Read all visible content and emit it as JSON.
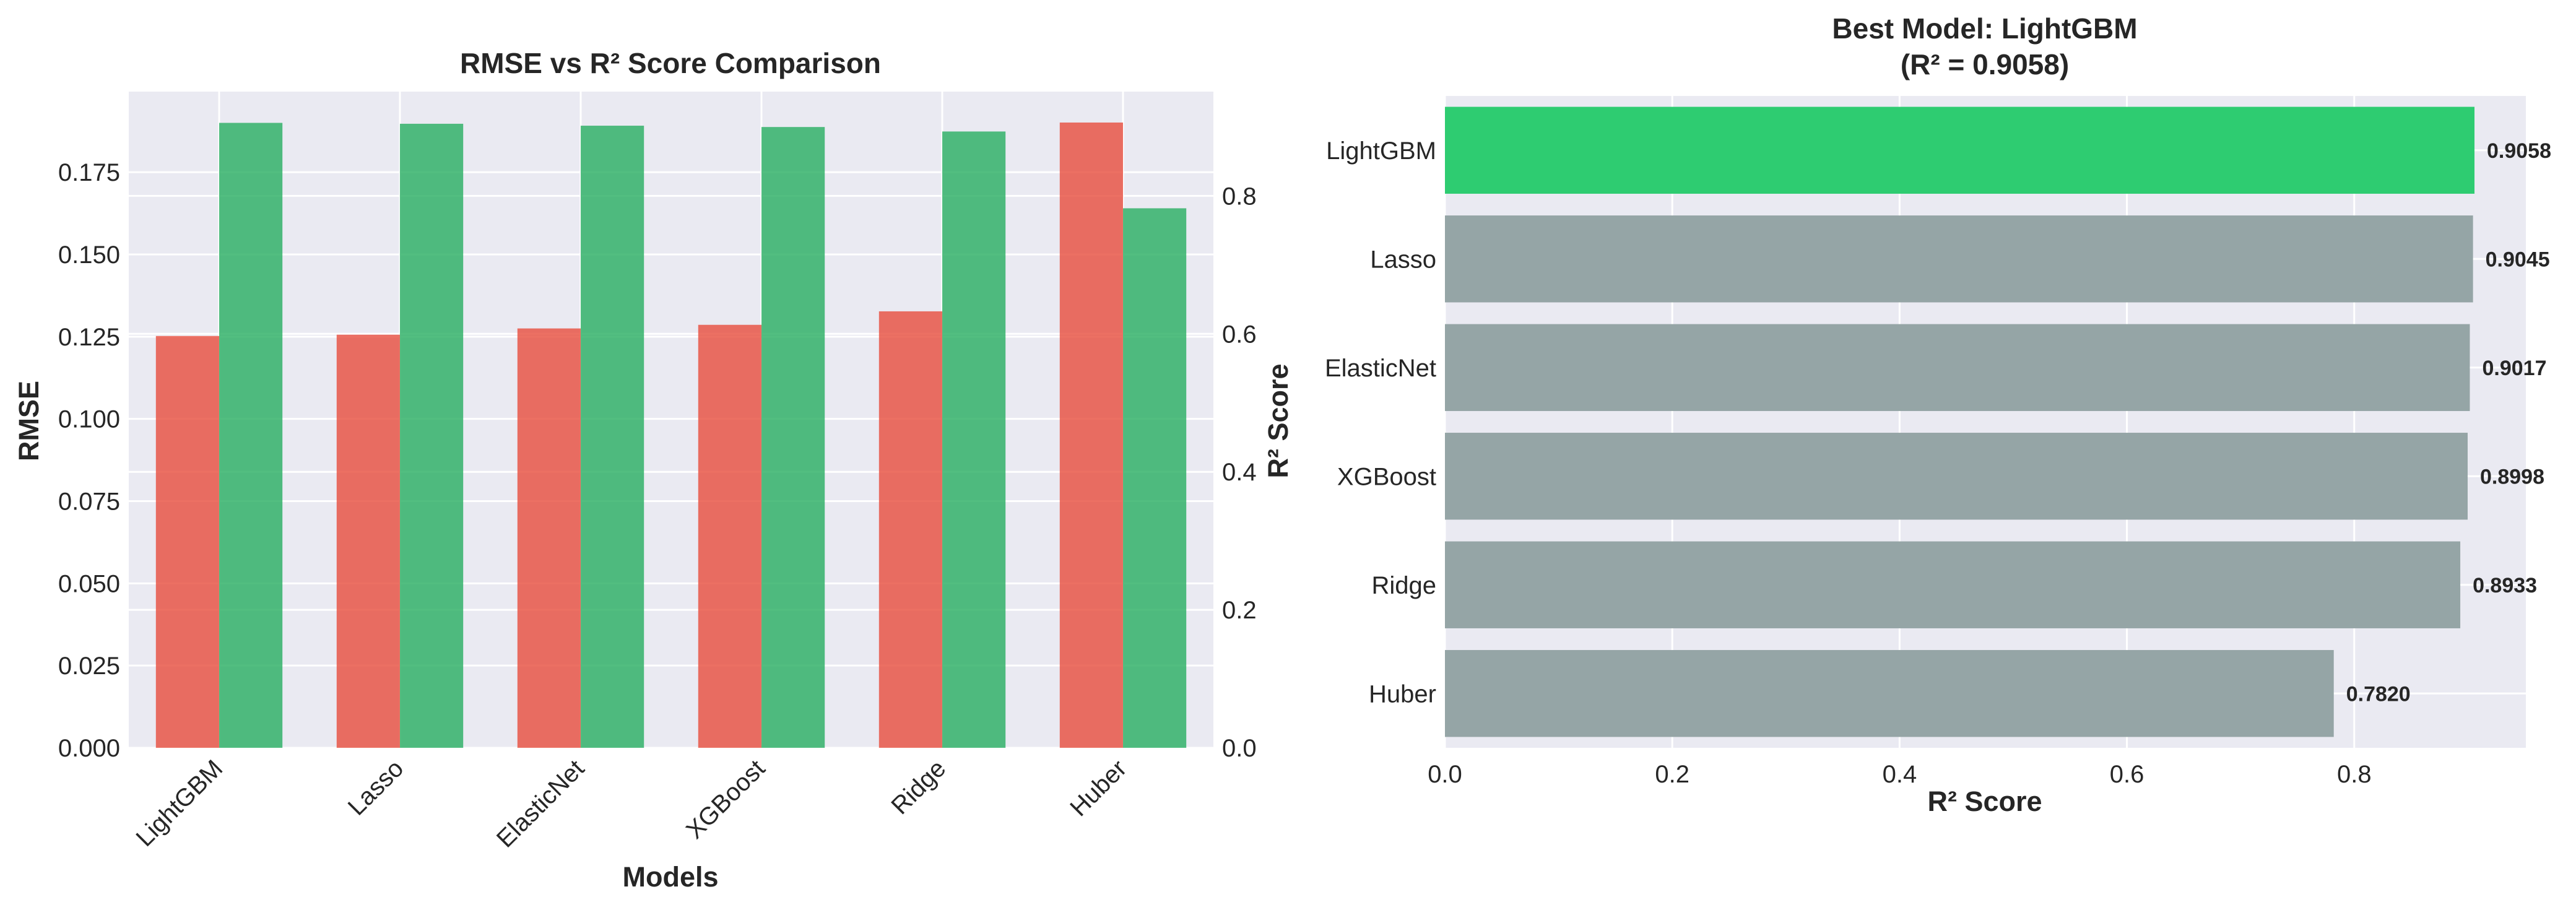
{
  "chart_data": [
    {
      "type": "bar",
      "title": "RMSE vs R² Score Comparison",
      "xlabel": "Models",
      "ylabel": "RMSE",
      "y2label": "R² Score",
      "categories": [
        "LightGBM",
        "Lasso",
        "ElasticNet",
        "XGBoost",
        "Ridge",
        "Huber"
      ],
      "series": [
        {
          "name": "RMSE",
          "axis": "left",
          "color": "#e74c3c",
          "values": [
            0.1252,
            0.1256,
            0.1275,
            0.1286,
            0.1327,
            0.1901
          ]
        },
        {
          "name": "R² Score",
          "axis": "right",
          "color": "#27ae60",
          "values": [
            0.9058,
            0.9045,
            0.9017,
            0.8998,
            0.8933,
            0.782
          ]
        }
      ],
      "ylim": [
        0,
        0.1995
      ],
      "y2lim": [
        0,
        0.9511
      ],
      "yticks": [
        0.0,
        0.025,
        0.05,
        0.075,
        0.1,
        0.125,
        0.15,
        0.175
      ],
      "ytick_labels": [
        "0.000",
        "0.025",
        "0.050",
        "0.075",
        "0.100",
        "0.125",
        "0.150",
        "0.175"
      ],
      "y2ticks": [
        0.0,
        0.2,
        0.4,
        0.6,
        0.8
      ],
      "y2tick_labels": [
        "0.0",
        "0.2",
        "0.4",
        "0.6",
        "0.8"
      ],
      "grid": true
    },
    {
      "type": "bar",
      "orientation": "horizontal",
      "title": "Best Model: LightGBM",
      "subtitle": "(R² = 0.9058)",
      "xlabel": "R² Score",
      "categories": [
        "LightGBM",
        "Lasso",
        "ElasticNet",
        "XGBoost",
        "Ridge",
        "Huber"
      ],
      "values": [
        0.9058,
        0.9045,
        0.9017,
        0.8998,
        0.8933,
        0.782
      ],
      "value_labels": [
        "0.9058",
        "0.9045",
        "0.9017",
        "0.8998",
        "0.8933",
        "0.7820"
      ],
      "highlight_color": "#2ecc71",
      "default_color": "#95a5a6",
      "xlim": [
        0,
        0.951
      ],
      "xticks": [
        0.0,
        0.2,
        0.4,
        0.6,
        0.8
      ],
      "xtick_labels": [
        "0.0",
        "0.2",
        "0.4",
        "0.6",
        "0.8"
      ],
      "grid": true
    }
  ]
}
